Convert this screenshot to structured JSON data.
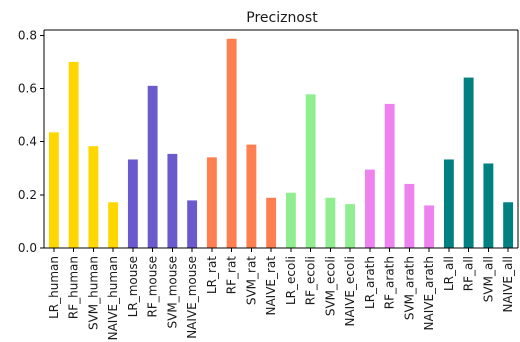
{
  "chart_data": {
    "type": "bar",
    "title": "Preciznost",
    "xlabel": "",
    "ylabel": "",
    "ylim": [
      0,
      0.82
    ],
    "yticks": [
      "0.0",
      "0.2",
      "0.4",
      "0.6",
      "0.8"
    ],
    "grid": false,
    "categories": [
      "LR_human",
      "RF_human",
      "SVM_human",
      "NAIVE_human",
      "LR_mouse",
      "RF_mouse",
      "SVM_mouse",
      "NAIVE_mouse",
      "LR_rat",
      "RF_rat",
      "SVM_rat",
      "NAIVE_rat",
      "LR_ecoli",
      "RF_ecoli",
      "SVM_ecoli",
      "NAIVE_ecoli",
      "LR_arath",
      "RF_arath",
      "SVM_arath",
      "NAIVE_arath",
      "LR_all",
      "RF_all",
      "SVM_all",
      "NAIVE_all"
    ],
    "values": [
      0.435,
      0.7,
      0.383,
      0.172,
      0.333,
      0.61,
      0.354,
      0.179,
      0.341,
      0.787,
      0.389,
      0.189,
      0.208,
      0.578,
      0.189,
      0.165,
      0.295,
      0.542,
      0.241,
      0.16,
      0.333,
      0.641,
      0.318,
      0.172
    ],
    "colors": [
      "#ffd700",
      "#ffd700",
      "#ffd700",
      "#ffd700",
      "#6a5acd",
      "#6a5acd",
      "#6a5acd",
      "#6a5acd",
      "#ff7f50",
      "#ff7f50",
      "#ff7f50",
      "#ff7f50",
      "#90ee90",
      "#90ee90",
      "#90ee90",
      "#90ee90",
      "#ee82ee",
      "#ee82ee",
      "#ee82ee",
      "#ee82ee",
      "#008080",
      "#008080",
      "#008080",
      "#008080"
    ]
  }
}
